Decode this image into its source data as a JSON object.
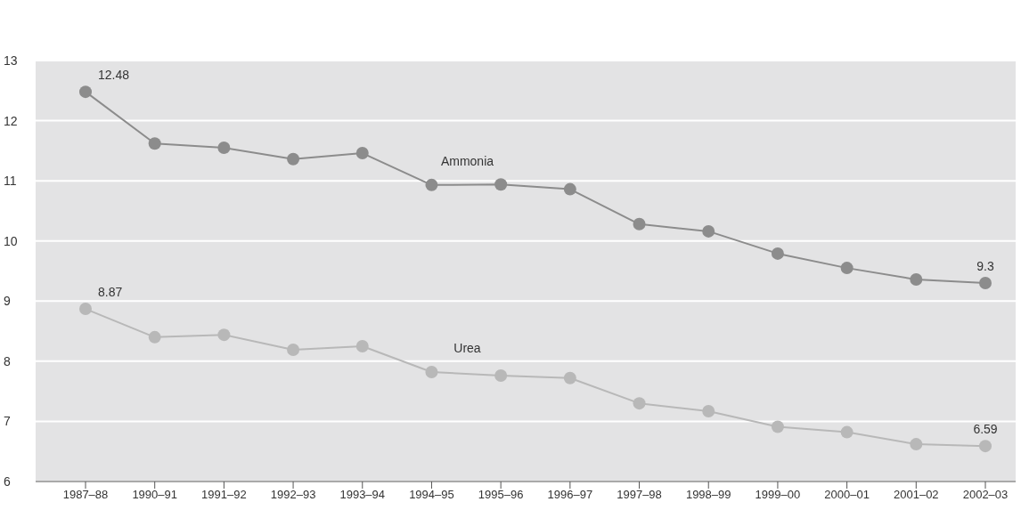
{
  "chart_data": {
    "type": "line",
    "categories": [
      "1987–88",
      "1990–91",
      "1991–92",
      "1992–93",
      "1993–94",
      "1994–95",
      "1995–96",
      "1996–97",
      "1997–98",
      "1998–99",
      "1999–00",
      "2000–01",
      "2001–02",
      "2002–03"
    ],
    "series": [
      {
        "name": "Ammonia",
        "color": "#8c8c8c",
        "values": [
          12.48,
          11.62,
          11.55,
          11.36,
          11.46,
          10.93,
          10.94,
          10.86,
          10.28,
          10.16,
          9.79,
          9.55,
          9.36,
          9.3
        ],
        "value_labels": [
          "12.48",
          null,
          null,
          null,
          null,
          null,
          null,
          null,
          null,
          null,
          null,
          null,
          null,
          "9.3"
        ]
      },
      {
        "name": "Urea",
        "color": "#b8b8b8",
        "values": [
          8.87,
          8.4,
          8.44,
          8.19,
          8.25,
          7.82,
          7.76,
          7.72,
          7.3,
          7.17,
          6.91,
          6.82,
          6.62,
          6.59
        ],
        "value_labels": [
          "8.87",
          null,
          null,
          null,
          null,
          null,
          null,
          null,
          null,
          null,
          null,
          null,
          null,
          "6.59"
        ]
      }
    ],
    "ylim": [
      6,
      13
    ],
    "yticks": [
      6,
      7,
      8,
      9,
      10,
      11,
      12,
      13
    ],
    "grid": "y",
    "marker": "circle",
    "line_style": "solid",
    "legend": false
  }
}
